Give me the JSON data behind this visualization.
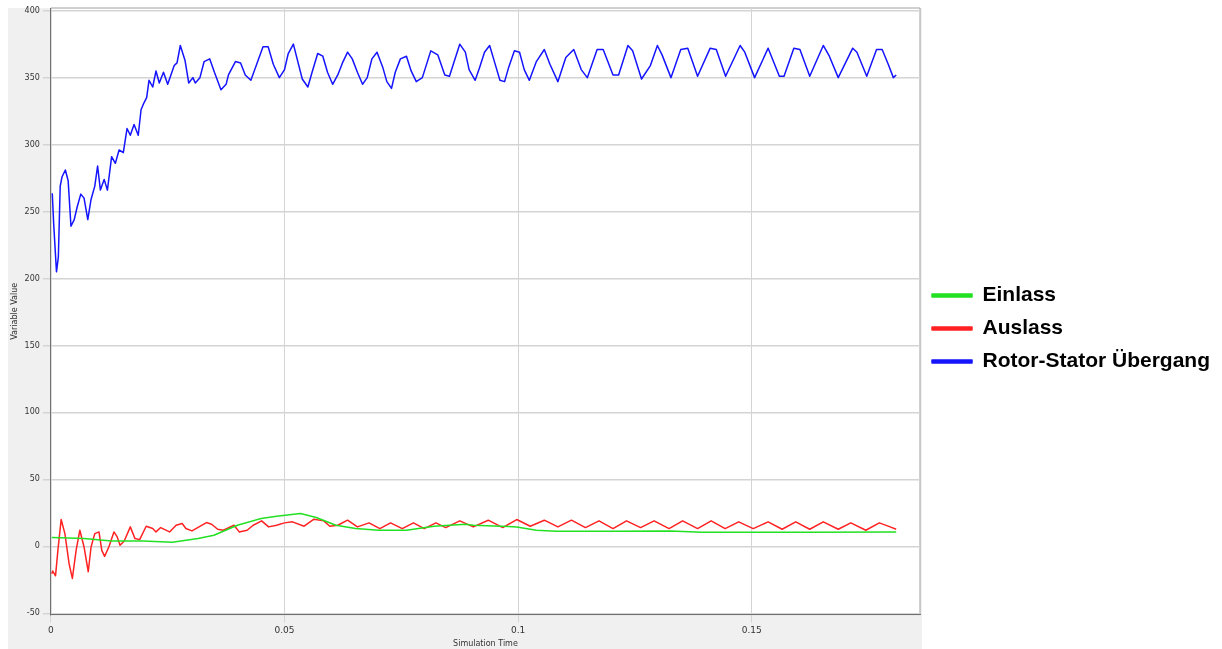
{
  "chart_data": {
    "type": "line",
    "xlabel": "Simulation Time",
    "ylabel": "Variable Value",
    "xlim": [
      0,
      0.186
    ],
    "ylim": [
      -51,
      402
    ],
    "xticks": [
      0,
      0.05,
      0.1,
      0.15
    ],
    "yticks": [
      -50,
      0,
      50,
      100,
      150,
      200,
      250,
      300,
      350,
      400
    ],
    "grid": true,
    "legend": "right",
    "marker": "none",
    "line_style": "solid",
    "series": [
      {
        "name": "Einlass",
        "color": "#22e022",
        "x": [
          0.0002,
          0.0071,
          0.013,
          0.0197,
          0.026,
          0.0315,
          0.0349,
          0.0399,
          0.045,
          0.0483,
          0.0534,
          0.0568,
          0.061,
          0.0652,
          0.0702,
          0.0761,
          0.082,
          0.0887,
          0.0904,
          0.0963,
          0.0997,
          0.1039,
          0.1081,
          0.1199,
          0.1326,
          0.1393,
          0.162,
          0.1809
        ],
        "values": [
          6.5,
          5.75,
          4,
          4,
          3,
          5.75,
          8.25,
          15.75,
          20.75,
          22.5,
          24.5,
          21.5,
          15.75,
          13.25,
          12,
          12,
          15,
          16.5,
          15.75,
          15,
          14.5,
          12,
          11.25,
          11.25,
          11.5,
          10.5,
          10.5,
          10.75
        ]
      },
      {
        "name": "Auslass",
        "color": "#ff2222",
        "x": [
          0.0002,
          0.0004,
          0.001,
          0.0015,
          0.0022,
          0.003,
          0.0039,
          0.0046,
          0.0054,
          0.0062,
          0.0071,
          0.008,
          0.0086,
          0.0094,
          0.0103,
          0.0109,
          0.0115,
          0.0124,
          0.0135,
          0.0142,
          0.0148,
          0.0157,
          0.017,
          0.018,
          0.019,
          0.0204,
          0.0218,
          0.0225,
          0.0235,
          0.0254,
          0.0268,
          0.0281,
          0.0289,
          0.0302,
          0.0317,
          0.0333,
          0.0344,
          0.0357,
          0.0369,
          0.0392,
          0.0403,
          0.042,
          0.0433,
          0.0451,
          0.0466,
          0.0483,
          0.05,
          0.0517,
          0.0542,
          0.0563,
          0.0584,
          0.0597,
          0.0614,
          0.0635,
          0.0656,
          0.0681,
          0.0704,
          0.0727,
          0.0752,
          0.0776,
          0.0799,
          0.0824,
          0.0845,
          0.0875,
          0.0904,
          0.0936,
          0.0967,
          0.0997,
          0.1026,
          0.1056,
          0.1085,
          0.1114,
          0.1144,
          0.1173,
          0.1203,
          0.1232,
          0.1262,
          0.1291,
          0.1323,
          0.1352,
          0.1384,
          0.1413,
          0.1443,
          0.1472,
          0.1503,
          0.1535,
          0.1565,
          0.1594,
          0.1624,
          0.1653,
          0.1685,
          0.1712,
          0.1744,
          0.1773,
          0.1796,
          0.1809
        ],
        "values": [
          -20.5,
          -18.5,
          -22,
          -3,
          20,
          9.5,
          -13,
          -24,
          -3,
          12,
          -0.5,
          -19,
          -0.5,
          9.5,
          10.75,
          -3,
          -7.5,
          -0.5,
          10.75,
          7,
          0.75,
          4,
          14.5,
          5.75,
          5,
          15,
          13.25,
          10.75,
          14,
          10.75,
          15.75,
          17,
          13.25,
          11.5,
          14.5,
          17.75,
          16.5,
          12.75,
          12,
          15.75,
          10.75,
          12,
          15.75,
          19,
          14.5,
          15.75,
          17.5,
          18.25,
          15,
          20.25,
          19,
          15,
          15.75,
          19.5,
          14.5,
          17.5,
          13.25,
          17.5,
          13.25,
          17.5,
          13.25,
          17.5,
          14,
          19,
          14.5,
          19.5,
          14,
          20,
          15,
          19.5,
          14.5,
          19.5,
          14,
          19,
          13.25,
          19,
          14,
          19,
          13.25,
          19,
          13.25,
          19,
          13.25,
          18.25,
          13.25,
          18.25,
          12.75,
          18.25,
          12.75,
          18.25,
          12.75,
          17.5,
          12,
          17.5,
          14.5,
          12.75
        ]
      },
      {
        "name": "Rotor-Stator Übergang",
        "color": "#1414ff",
        "x": [
          0.0003,
          0.0006,
          0.0012,
          0.0016,
          0.002,
          0.0024,
          0.0031,
          0.0037,
          0.0043,
          0.005,
          0.0056,
          0.0064,
          0.0071,
          0.0079,
          0.0086,
          0.0094,
          0.01,
          0.0106,
          0.0114,
          0.0121,
          0.013,
          0.0138,
          0.0146,
          0.0155,
          0.0163,
          0.017,
          0.0178,
          0.0187,
          0.0193,
          0.0199,
          0.0205,
          0.021,
          0.0218,
          0.0225,
          0.0232,
          0.0241,
          0.025,
          0.0264,
          0.027,
          0.0277,
          0.0287,
          0.0295,
          0.0304,
          0.0309,
          0.0319,
          0.0328,
          0.034,
          0.035,
          0.0364,
          0.0375,
          0.038,
          0.0395,
          0.0406,
          0.0416,
          0.0428,
          0.0454,
          0.0465,
          0.0476,
          0.0489,
          0.05,
          0.0508,
          0.0519,
          0.0527,
          0.0538,
          0.055,
          0.0559,
          0.0571,
          0.0582,
          0.0592,
          0.0603,
          0.0614,
          0.0624,
          0.0635,
          0.0645,
          0.0656,
          0.0667,
          0.0677,
          0.0687,
          0.0698,
          0.071,
          0.0719,
          0.0729,
          0.0737,
          0.0748,
          0.0761,
          0.0771,
          0.0782,
          0.0795,
          0.0813,
          0.0828,
          0.0843,
          0.0853,
          0.0875,
          0.0887,
          0.0895,
          0.0908,
          0.0917,
          0.0928,
          0.0939,
          0.095,
          0.0961,
          0.0971,
          0.098,
          0.0992,
          0.1003,
          0.1013,
          0.1024,
          0.1039,
          0.1056,
          0.1068,
          0.1085,
          0.1102,
          0.1119,
          0.1135,
          0.1148,
          0.1169,
          0.1182,
          0.1203,
          0.1215,
          0.1235,
          0.1245,
          0.1264,
          0.1283,
          0.1298,
          0.1308,
          0.1327,
          0.1348,
          0.1363,
          0.1384,
          0.1411,
          0.1424,
          0.1444,
          0.1475,
          0.1485,
          0.1506,
          0.1535,
          0.1559,
          0.1569,
          0.159,
          0.1603,
          0.1624,
          0.1653,
          0.1666,
          0.1685,
          0.1716,
          0.1725,
          0.1746,
          0.1767,
          0.1779,
          0.1792,
          0.1803,
          0.1809
        ],
        "values": [
          263.7,
          241,
          205,
          216,
          269,
          276,
          281,
          273,
          239,
          244,
          253,
          263,
          260,
          244,
          259,
          269,
          284,
          266,
          274,
          266,
          291,
          286,
          296,
          294,
          312,
          307,
          315,
          307,
          326,
          331,
          335,
          348,
          343,
          355,
          346,
          354,
          345,
          359,
          361,
          374,
          363,
          346,
          350,
          346,
          350,
          362,
          364,
          354,
          341,
          345,
          352,
          362,
          361,
          352,
          348,
          373,
          373,
          360,
          350,
          356,
          368,
          375,
          364,
          349,
          343,
          354,
          368,
          366,
          354,
          345,
          352,
          361,
          369,
          364,
          354,
          345,
          350,
          364,
          369,
          358,
          347,
          342,
          354,
          364,
          366,
          355,
          347,
          350,
          370,
          367,
          352,
          351,
          375,
          369,
          356,
          348,
          357,
          369,
          374,
          361,
          348,
          347,
          358,
          370,
          369,
          356,
          348,
          362,
          371,
          360,
          347,
          365,
          371,
          356,
          350,
          371,
          371,
          352,
          352,
          374,
          370,
          349,
          359,
          374,
          367,
          350,
          371,
          372,
          351,
          372,
          371,
          351,
          374,
          369,
          350,
          372,
          351,
          351,
          372,
          371,
          351,
          374,
          366,
          350,
          372,
          369,
          351,
          371,
          371,
          360,
          350,
          352
        ]
      }
    ]
  }
}
